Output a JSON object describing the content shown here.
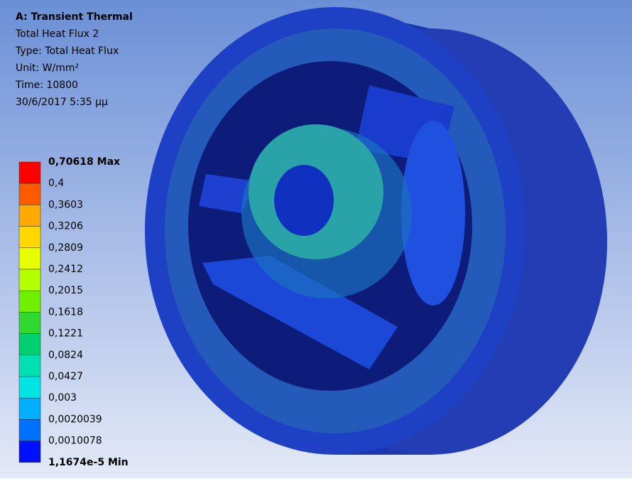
{
  "header": {
    "title": "A: Transient Thermal",
    "lines": [
      "Total Heat Flux 2",
      "Type: Total Heat Flux",
      "Unit: W/mm²",
      "Time: 10800",
      "30/6/2017 5:35 μμ"
    ]
  },
  "legend": {
    "labels": [
      "0,70618 Max",
      "0,4",
      "0,3603",
      "0,3206",
      "0,2809",
      "0,2412",
      "0,2015",
      "0,1618",
      "0,1221",
      "0,0824",
      "0,0427",
      "0,003",
      "0,0020039",
      "0,0010078",
      "1,1674e-5 Min"
    ],
    "colors": [
      "#ff0000",
      "#ff5a00",
      "#ffaa00",
      "#ffd800",
      "#e8ff00",
      "#b4ff00",
      "#70f000",
      "#30d830",
      "#00d070",
      "#00e0b0",
      "#00e4e4",
      "#00b0ff",
      "#0070ff",
      "#0010ff"
    ]
  }
}
